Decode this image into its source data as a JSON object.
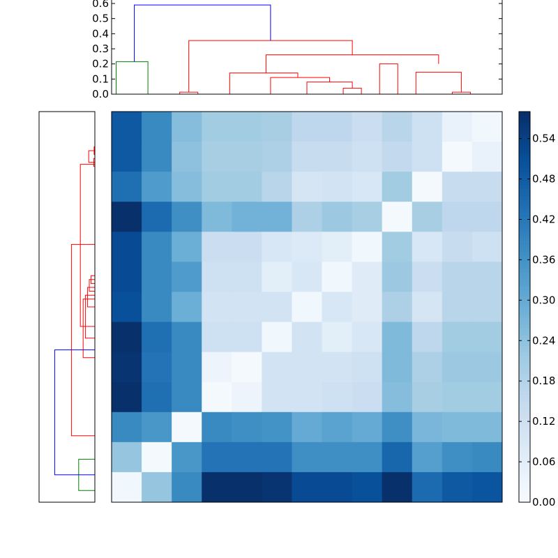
{
  "chart_data": [
    {
      "type": "dendrogram",
      "panel": "top",
      "ylim": [
        0,
        0.6
      ],
      "yticks": [
        "0.0",
        "0.1",
        "0.2",
        "0.3",
        "0.4",
        "0.5",
        "0.6"
      ],
      "leaf_count": 13,
      "links": [
        {
          "color": "#ff0000",
          "left_x": 7.5,
          "left_h": 0.0,
          "right_x": 9.5,
          "right_h": 0.0,
          "h": 0.013
        },
        {
          "color": "#ff0000",
          "left_x": 37.5,
          "left_h": 0.0,
          "right_x": 39.5,
          "right_h": 0.0,
          "h": 0.013
        },
        {
          "color": "#ff0000",
          "left_x": 33.5,
          "left_h": 0.0,
          "right_x": 38.5,
          "right_h": 0.013,
          "h": 0.145
        },
        {
          "color": "#ff0000",
          "left_x": 29.5,
          "left_h": 0.0,
          "right_x": 31.5,
          "right_h": 0.0,
          "h": 0.2
        },
        {
          "color": "#ff0000",
          "left_x": 25.5,
          "left_h": 0.0,
          "right_x": 27.5,
          "right_h": 0.0,
          "h": 0.04
        },
        {
          "color": "#ff0000",
          "left_x": 21.5,
          "left_h": 0.0,
          "right_x": 26.5,
          "right_h": 0.04,
          "h": 0.08
        },
        {
          "color": "#ff0000",
          "left_x": 17.5,
          "left_h": 0.0,
          "right_x": 24.0,
          "right_h": 0.08,
          "h": 0.11
        },
        {
          "color": "#ff0000",
          "left_x": 13.0,
          "left_h": 0.0,
          "right_x": 20.5,
          "right_h": 0.11,
          "h": 0.14
        },
        {
          "color": "#ff0000",
          "left_x": 17.0,
          "left_h": 0.14,
          "right_x": 36.0,
          "right_h": 0.2,
          "h": 0.26
        },
        {
          "color": "#ff0000",
          "left_x": 8.5,
          "left_h": 0.013,
          "right_x": 26.5,
          "right_h": 0.26,
          "h": 0.355
        },
        {
          "color": "#008000",
          "left_x": 0.5,
          "left_h": 0.0,
          "right_x": 4.0,
          "right_h": 0.0,
          "h": 0.215
        },
        {
          "color": "#0000ff",
          "left_x": 2.5,
          "left_h": 0.215,
          "right_x": 17.5,
          "right_h": 0.355,
          "h": 0.59
        }
      ]
    },
    {
      "type": "dendrogram",
      "panel": "left",
      "leaf_count": 13,
      "links": [
        {
          "color": "#ff0000",
          "a": 0.09,
          "b": 0.11,
          "h": 0.013
        },
        {
          "color": "#ff0000",
          "a": 0.12,
          "b": 0.14,
          "h": 0.02
        },
        {
          "color": "#ff0000",
          "a": 0.1,
          "b": 0.13,
          "h": 0.11
        },
        {
          "color": "#ff0000",
          "a": 0.42,
          "b": 0.44,
          "h": 0.07
        },
        {
          "color": "#ff0000",
          "a": 0.43,
          "b": 0.46,
          "h": 0.1
        },
        {
          "color": "#ff0000",
          "a": 0.45,
          "b": 0.5,
          "h": 0.13
        },
        {
          "color": "#ff0000",
          "a": 0.47,
          "b": 0.58,
          "h": 0.17
        },
        {
          "color": "#ff0000",
          "a": 0.48,
          "b": 0.63,
          "h": 0.21
        },
        {
          "color": "#ff0000",
          "a": 0.135,
          "b": 0.55,
          "h": 0.26
        },
        {
          "color": "#ff0000",
          "a": 0.34,
          "b": 0.83,
          "h": 0.42
        },
        {
          "color": "#008000",
          "a": 0.89,
          "b": 0.97,
          "h": 0.29
        },
        {
          "color": "#0000ff",
          "a": 0.61,
          "b": 0.93,
          "h": 0.72
        }
      ]
    },
    {
      "type": "heatmap",
      "rows": 13,
      "cols": 13,
      "values": [
        [
          0.49,
          0.38,
          0.25,
          0.21,
          0.21,
          0.2,
          0.16,
          0.16,
          0.13,
          0.17,
          0.12,
          0.04,
          0.02
        ],
        [
          0.49,
          0.38,
          0.24,
          0.2,
          0.2,
          0.19,
          0.14,
          0.14,
          0.12,
          0.15,
          0.12,
          0.01,
          0.04
        ],
        [
          0.44,
          0.34,
          0.25,
          0.21,
          0.21,
          0.17,
          0.1,
          0.11,
          0.09,
          0.21,
          0.01,
          0.14,
          0.14
        ],
        [
          0.59,
          0.45,
          0.37,
          0.26,
          0.28,
          0.28,
          0.19,
          0.22,
          0.2,
          0.01,
          0.2,
          0.16,
          0.16
        ],
        [
          0.52,
          0.38,
          0.29,
          0.13,
          0.13,
          0.09,
          0.08,
          0.06,
          0.02,
          0.21,
          0.09,
          0.14,
          0.12
        ],
        [
          0.52,
          0.38,
          0.34,
          0.12,
          0.12,
          0.06,
          0.09,
          0.02,
          0.07,
          0.22,
          0.13,
          0.17,
          0.17
        ],
        [
          0.51,
          0.38,
          0.29,
          0.11,
          0.11,
          0.11,
          0.02,
          0.09,
          0.07,
          0.19,
          0.1,
          0.17,
          0.17
        ],
        [
          0.58,
          0.44,
          0.38,
          0.12,
          0.12,
          0.02,
          0.11,
          0.06,
          0.09,
          0.26,
          0.16,
          0.21,
          0.21
        ],
        [
          0.57,
          0.43,
          0.38,
          0.03,
          0.01,
          0.11,
          0.11,
          0.11,
          0.12,
          0.26,
          0.19,
          0.22,
          0.22
        ],
        [
          0.58,
          0.44,
          0.38,
          0.01,
          0.03,
          0.11,
          0.11,
          0.12,
          0.13,
          0.25,
          0.2,
          0.21,
          0.21
        ],
        [
          0.38,
          0.35,
          0.01,
          0.38,
          0.37,
          0.36,
          0.3,
          0.32,
          0.3,
          0.37,
          0.27,
          0.26,
          0.26
        ],
        [
          0.23,
          0.01,
          0.35,
          0.43,
          0.43,
          0.43,
          0.37,
          0.37,
          0.37,
          0.46,
          0.33,
          0.37,
          0.38
        ],
        [
          0.02,
          0.23,
          0.38,
          0.59,
          0.59,
          0.57,
          0.52,
          0.52,
          0.51,
          0.58,
          0.45,
          0.49,
          0.5
        ]
      ],
      "colormap": "Blues",
      "vmin": 0.0,
      "vmax": 0.58
    },
    {
      "type": "colorbar",
      "colormap": "Blues",
      "ylim": [
        0.0,
        0.58
      ],
      "ticks": [
        "0.00",
        "0.06",
        "0.12",
        "0.18",
        "0.24",
        "0.30",
        "0.36",
        "0.42",
        "0.48",
        "0.54"
      ]
    }
  ]
}
